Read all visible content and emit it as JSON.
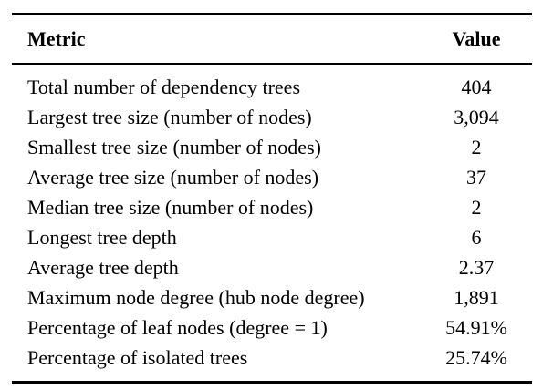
{
  "table": {
    "headers": {
      "metric": "Metric",
      "value": "Value"
    },
    "rows": [
      {
        "metric": "Total number of dependency trees",
        "value": "404"
      },
      {
        "metric": "Largest tree size (number of nodes)",
        "value": "3,094"
      },
      {
        "metric": "Smallest tree size (number of nodes)",
        "value": "2"
      },
      {
        "metric": "Average tree size (number of nodes)",
        "value": "37"
      },
      {
        "metric": "Median tree size (number of nodes)",
        "value": "2"
      },
      {
        "metric": "Longest tree depth",
        "value": "6"
      },
      {
        "metric": "Average tree depth",
        "value": "2.37"
      },
      {
        "metric": "Maximum node degree (hub node degree)",
        "value": "1,891"
      },
      {
        "metric": "Percentage of leaf nodes (degree = 1)",
        "value": "54.91%"
      },
      {
        "metric": "Percentage of isolated trees",
        "value": "25.74%"
      }
    ]
  }
}
